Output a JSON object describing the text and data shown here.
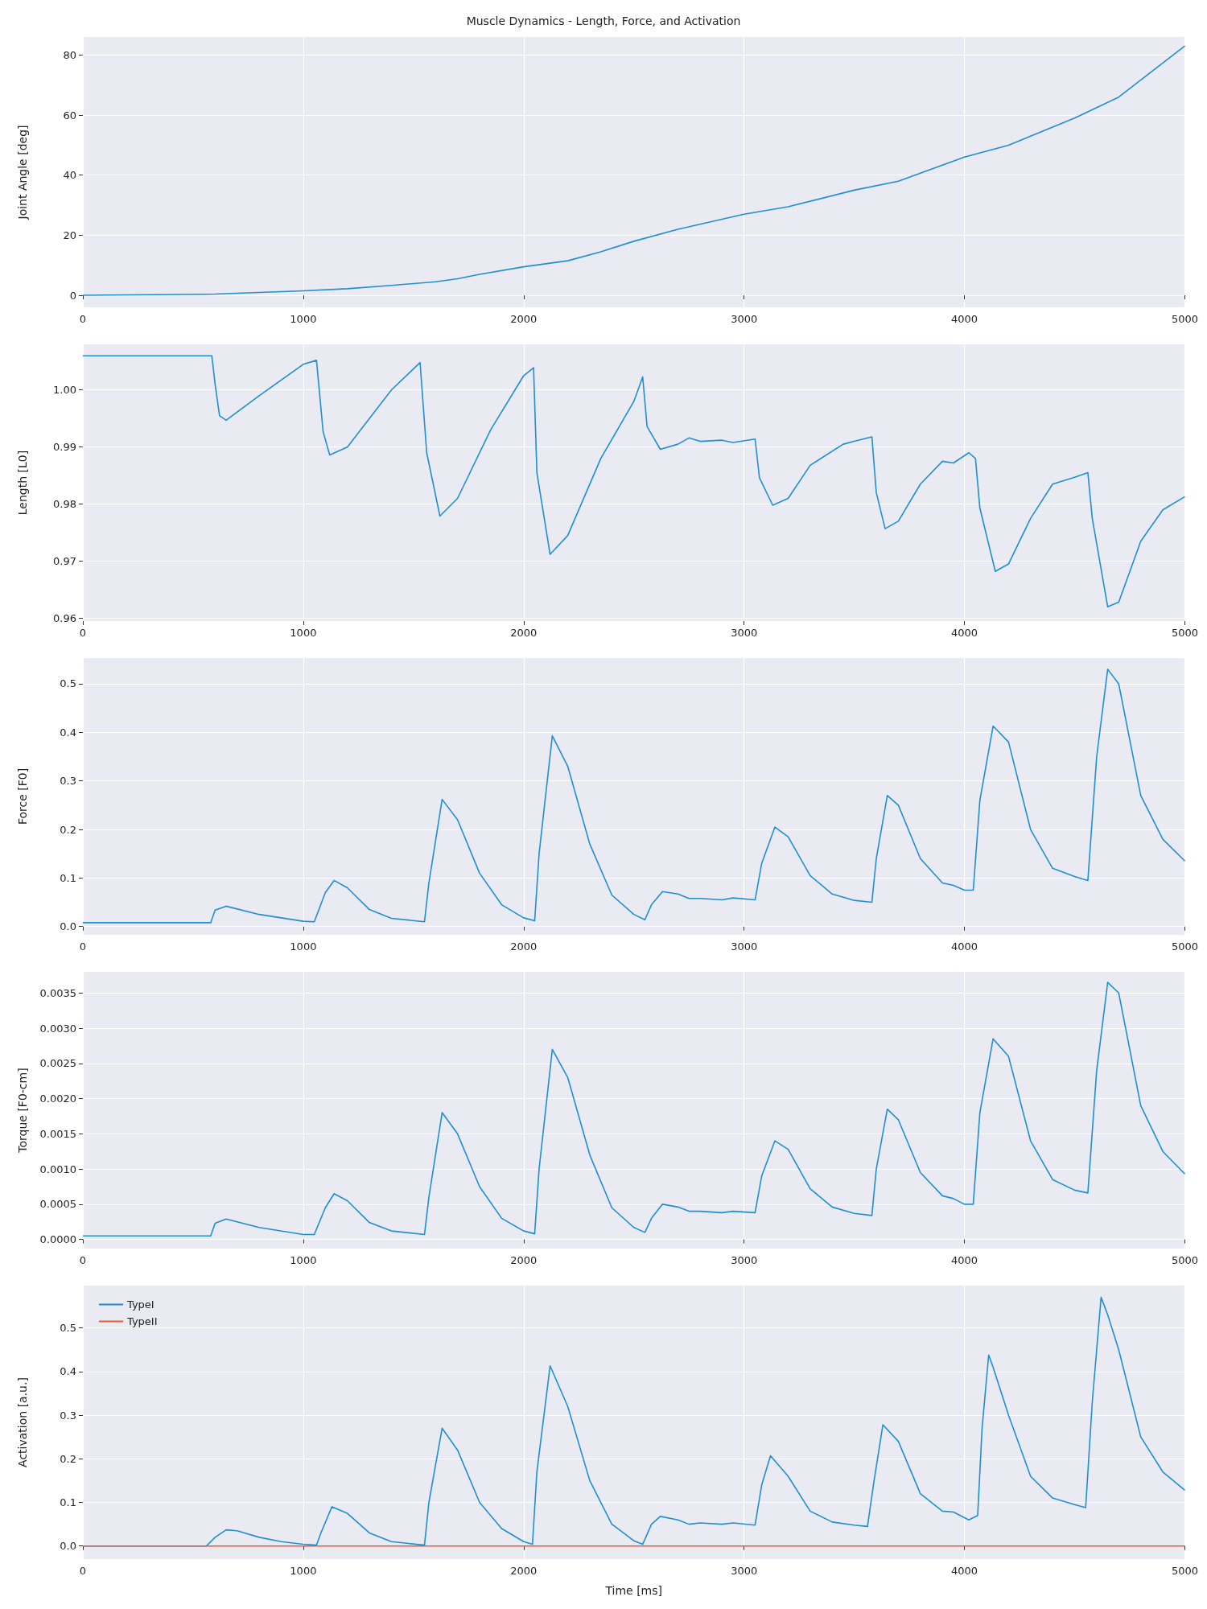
{
  "chart_data": [
    {
      "type": "line",
      "title": "Muscle Dynamics - Length, Force, and Activation",
      "ylabel": "Joint Angle [deg]",
      "grid": true,
      "xlim": [
        0,
        5000
      ],
      "xticks": [
        0,
        1000,
        2000,
        3000,
        4000,
        5000
      ],
      "ylim": [
        -4,
        86
      ],
      "yticks": [
        0,
        20,
        40,
        60,
        80
      ],
      "series": [
        {
          "color": "#1f8fd1",
          "x": [
            0,
            600,
            1000,
            1200,
            1400,
            1600,
            1700,
            1800,
            2000,
            2200,
            2350,
            2500,
            2700,
            3000,
            3200,
            3500,
            3700,
            4000,
            4200,
            4500,
            4700,
            5000
          ],
          "values": [
            0,
            0.4,
            1.5,
            2.2,
            3.3,
            4.5,
            5.5,
            7,
            9.5,
            11.5,
            14.5,
            18,
            22,
            27,
            29.5,
            35,
            38,
            46,
            50,
            59,
            66,
            83
          ]
        }
      ]
    },
    {
      "type": "line",
      "ylabel": "Length [L0]",
      "grid": true,
      "xlim": [
        0,
        5000
      ],
      "xticks": [
        0,
        1000,
        2000,
        3000,
        4000,
        5000
      ],
      "ylim": [
        0.9595,
        1.008
      ],
      "yticks": [
        {
          "value": 0.96,
          "label": "0.96"
        },
        {
          "value": 0.97,
          "label": "0.97"
        },
        {
          "value": 0.98,
          "label": "0.98"
        },
        {
          "value": 0.99,
          "label": "0.99"
        },
        {
          "value": 1.0,
          "label": "1.00"
        }
      ],
      "series": [
        {
          "color": "#1f8fd1",
          "x": [
            0,
            585,
            600,
            620,
            650,
            800,
            1000,
            1060,
            1090,
            1120,
            1200,
            1400,
            1530,
            1560,
            1620,
            1700,
            1850,
            2000,
            2045,
            2060,
            2120,
            2200,
            2350,
            2500,
            2540,
            2560,
            2620,
            2700,
            2750,
            2800,
            2900,
            2950,
            3050,
            3070,
            3130,
            3200,
            3300,
            3450,
            3500,
            3580,
            3600,
            3640,
            3700,
            3800,
            3900,
            3950,
            4020,
            4050,
            4070,
            4140,
            4200,
            4300,
            4400,
            4500,
            4560,
            4580,
            4650,
            4700,
            4800,
            4900,
            5000
          ],
          "values": [
            1.006,
            1.006,
            1.001,
            0.9955,
            0.9947,
            0.999,
            1.0045,
            1.0052,
            0.9927,
            0.9886,
            0.99,
            1.0,
            1.0048,
            0.989,
            0.9779,
            0.981,
            0.993,
            1.0025,
            1.0039,
            0.9855,
            0.9712,
            0.9745,
            0.988,
            0.998,
            1.0023,
            0.9936,
            0.9896,
            0.9905,
            0.9916,
            0.991,
            0.9912,
            0.9908,
            0.9914,
            0.9846,
            0.9798,
            0.981,
            0.9868,
            0.9905,
            0.991,
            0.9918,
            0.982,
            0.9757,
            0.977,
            0.9835,
            0.9875,
            0.9872,
            0.989,
            0.988,
            0.9793,
            0.9682,
            0.9695,
            0.9775,
            0.9835,
            0.9847,
            0.9855,
            0.9775,
            0.962,
            0.9628,
            0.9735,
            0.979,
            0.9813
          ]
        }
      ]
    },
    {
      "type": "line",
      "ylabel": "Force [F0]",
      "grid": true,
      "xlim": [
        0,
        5000
      ],
      "xticks": [
        0,
        1000,
        2000,
        3000,
        4000,
        5000
      ],
      "ylim": [
        -0.017,
        0.553
      ],
      "yticks": [
        {
          "value": 0,
          "label": "0.0"
        },
        0.1,
        0.2,
        0.3,
        0.4,
        0.5
      ],
      "series": [
        {
          "color": "#1f8fd1",
          "x": [
            0,
            580,
            600,
            650,
            800,
            1000,
            1050,
            1100,
            1140,
            1200,
            1300,
            1400,
            1550,
            1570,
            1630,
            1700,
            1800,
            1900,
            2000,
            2050,
            2070,
            2130,
            2200,
            2300,
            2400,
            2500,
            2550,
            2580,
            2630,
            2700,
            2750,
            2800,
            2900,
            2950,
            3050,
            3080,
            3140,
            3200,
            3300,
            3400,
            3500,
            3580,
            3600,
            3650,
            3700,
            3800,
            3900,
            3950,
            4000,
            4040,
            4070,
            4130,
            4200,
            4300,
            4400,
            4500,
            4560,
            4600,
            4650,
            4700,
            4800,
            4900,
            5000
          ],
          "values": [
            0.008,
            0.008,
            0.034,
            0.042,
            0.025,
            0.011,
            0.01,
            0.07,
            0.095,
            0.08,
            0.035,
            0.017,
            0.01,
            0.09,
            0.262,
            0.22,
            0.11,
            0.045,
            0.018,
            0.012,
            0.15,
            0.393,
            0.33,
            0.17,
            0.065,
            0.025,
            0.014,
            0.045,
            0.072,
            0.067,
            0.058,
            0.058,
            0.055,
            0.059,
            0.055,
            0.13,
            0.205,
            0.185,
            0.105,
            0.067,
            0.054,
            0.05,
            0.14,
            0.27,
            0.25,
            0.14,
            0.09,
            0.085,
            0.075,
            0.075,
            0.26,
            0.413,
            0.38,
            0.2,
            0.12,
            0.103,
            0.095,
            0.35,
            0.53,
            0.5,
            0.27,
            0.18,
            0.135
          ]
        }
      ]
    },
    {
      "type": "line",
      "ylabel": "Torque [F0-cm]",
      "grid": true,
      "xlim": [
        0,
        5000
      ],
      "xticks": [
        0,
        1000,
        2000,
        3000,
        4000,
        5000
      ],
      "ylim": [
        -0.00013,
        0.0038
      ],
      "yticks": [
        {
          "value": 0,
          "label": "0.0000"
        },
        {
          "value": 0.0005,
          "label": "0.0005"
        },
        {
          "value": 0.001,
          "label": "0.0010"
        },
        {
          "value": 0.0015,
          "label": "0.0015"
        },
        {
          "value": 0.002,
          "label": "0.0020"
        },
        {
          "value": 0.0025,
          "label": "0.0025"
        },
        {
          "value": 0.003,
          "label": "0.0030"
        },
        {
          "value": 0.0035,
          "label": "0.0035"
        }
      ],
      "series": [
        {
          "color": "#1f8fd1",
          "x": [
            0,
            580,
            600,
            650,
            800,
            1000,
            1050,
            1100,
            1140,
            1200,
            1300,
            1400,
            1550,
            1570,
            1630,
            1700,
            1800,
            1900,
            2000,
            2050,
            2070,
            2130,
            2200,
            2300,
            2400,
            2500,
            2550,
            2580,
            2630,
            2700,
            2750,
            2800,
            2900,
            2950,
            3050,
            3080,
            3140,
            3200,
            3300,
            3400,
            3500,
            3580,
            3600,
            3650,
            3700,
            3800,
            3900,
            3950,
            4000,
            4040,
            4070,
            4130,
            4200,
            4300,
            4400,
            4500,
            4560,
            4600,
            4650,
            4700,
            4800,
            4900,
            5000
          ],
          "values": [
            5e-05,
            5e-05,
            0.00023,
            0.00029,
            0.00017,
            7e-05,
            7e-05,
            0.00045,
            0.00065,
            0.00055,
            0.00024,
            0.00012,
            7e-05,
            0.0006,
            0.0018,
            0.0015,
            0.00075,
            0.0003,
            0.00012,
            8e-05,
            0.001,
            0.0027,
            0.0023,
            0.0012,
            0.00045,
            0.00017,
            0.0001,
            0.0003,
            0.0005,
            0.00046,
            0.0004,
            0.0004,
            0.00038,
            0.0004,
            0.00038,
            0.0009,
            0.0014,
            0.00128,
            0.00072,
            0.00046,
            0.00037,
            0.00034,
            0.001,
            0.00185,
            0.0017,
            0.00095,
            0.00062,
            0.00058,
            0.0005,
            0.0005,
            0.0018,
            0.00285,
            0.0026,
            0.0014,
            0.00085,
            0.0007,
            0.00066,
            0.0024,
            0.00365,
            0.0035,
            0.0019,
            0.00125,
            0.00093
          ]
        }
      ]
    },
    {
      "type": "line",
      "xlabel": "Time [ms]",
      "ylabel": "Activation [a.u.]",
      "grid": true,
      "legend": "top left",
      "xlim": [
        0,
        5000
      ],
      "xticks": [
        0,
        1000,
        2000,
        3000,
        4000,
        5000
      ],
      "ylim": [
        -0.03,
        0.597
      ],
      "yticks": [
        {
          "value": 0,
          "label": "0.0"
        },
        0.1,
        0.2,
        0.3,
        0.4,
        0.5
      ],
      "series": [
        {
          "name": "TypeI",
          "color": "#1f8fd1",
          "x": [
            0,
            560,
            600,
            650,
            700,
            800,
            900,
            1000,
            1060,
            1080,
            1130,
            1200,
            1300,
            1400,
            1550,
            1570,
            1630,
            1700,
            1800,
            1900,
            2000,
            2040,
            2060,
            2120,
            2200,
            2300,
            2400,
            2500,
            2540,
            2580,
            2620,
            2700,
            2750,
            2800,
            2900,
            2950,
            3050,
            3080,
            3120,
            3200,
            3300,
            3400,
            3500,
            3560,
            3590,
            3630,
            3700,
            3800,
            3900,
            3950,
            4020,
            4060,
            4080,
            4110,
            4130,
            4200,
            4300,
            4400,
            4500,
            4550,
            4580,
            4620,
            4650,
            4700,
            4800,
            4900,
            5000
          ],
          "values": [
            0,
            0,
            0.02,
            0.037,
            0.035,
            0.02,
            0.01,
            0.004,
            0.002,
            0.03,
            0.09,
            0.075,
            0.03,
            0.01,
            0.002,
            0.1,
            0.27,
            0.22,
            0.1,
            0.04,
            0.01,
            0.004,
            0.17,
            0.413,
            0.32,
            0.15,
            0.05,
            0.012,
            0.004,
            0.05,
            0.068,
            0.06,
            0.05,
            0.053,
            0.05,
            0.053,
            0.048,
            0.14,
            0.207,
            0.16,
            0.08,
            0.055,
            0.048,
            0.045,
            0.15,
            0.278,
            0.24,
            0.12,
            0.08,
            0.078,
            0.06,
            0.07,
            0.27,
            0.438,
            0.41,
            0.3,
            0.16,
            0.11,
            0.095,
            0.088,
            0.33,
            0.57,
            0.53,
            0.45,
            0.25,
            0.17,
            0.128
          ]
        },
        {
          "name": "TypeII",
          "color": "#ee5a2f",
          "x": [
            0,
            5000
          ],
          "values": [
            0,
            0
          ]
        }
      ]
    }
  ]
}
